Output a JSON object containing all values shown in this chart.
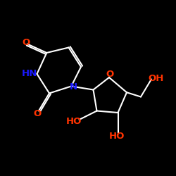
{
  "bg_color": "#000000",
  "bond_color": "#ffffff",
  "label_color_O": "#ff3300",
  "label_color_N": "#1a1aff",
  "label_color_OH": "#ff3300",
  "figsize": [
    2.5,
    2.5
  ],
  "dpi": 100,
  "lw": 1.5,
  "fs": 9.5,
  "xlim": [
    0,
    10
  ],
  "ylim": [
    0,
    10
  ]
}
